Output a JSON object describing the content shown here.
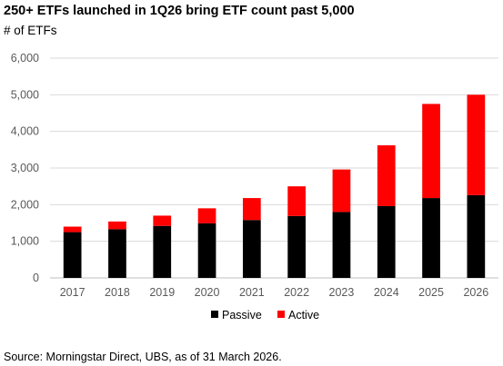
{
  "title": "250+ ETFs launched in 1Q26 bring ETF count past 5,000",
  "subtitle": "# of ETFs",
  "source": "Source: Morningstar Direct, UBS, as of 31 March 2026.",
  "colors": {
    "passive": "#000000",
    "active": "#ff0000",
    "grid": "#d9d9d9",
    "axis": "#bfbfbf"
  },
  "chart_data": {
    "type": "bar",
    "stacked": true,
    "title": "250+ ETFs launched in 1Q26 bring ETF count past 5,000",
    "ylabel": "# of ETFs",
    "xlabel": "",
    "categories": [
      "2017",
      "2018",
      "2019",
      "2020",
      "2021",
      "2022",
      "2023",
      "2024",
      "2025",
      "2026"
    ],
    "series": [
      {
        "name": "Passive",
        "color": "#000000",
        "values": [
          1250,
          1330,
          1420,
          1490,
          1580,
          1690,
          1800,
          1960,
          2180,
          2260
        ]
      },
      {
        "name": "Active",
        "color": "#ff0000",
        "values": [
          150,
          210,
          280,
          410,
          600,
          810,
          1160,
          1660,
          2570,
          2740
        ]
      }
    ],
    "ylim": [
      0,
      6000
    ],
    "yticks": [
      0,
      1000,
      2000,
      3000,
      4000,
      5000,
      6000
    ],
    "ytick_labels": [
      "0",
      "1,000",
      "2,000",
      "3,000",
      "4,000",
      "5,000",
      "6,000"
    ],
    "grid": true,
    "legend_position": "bottom-center"
  }
}
